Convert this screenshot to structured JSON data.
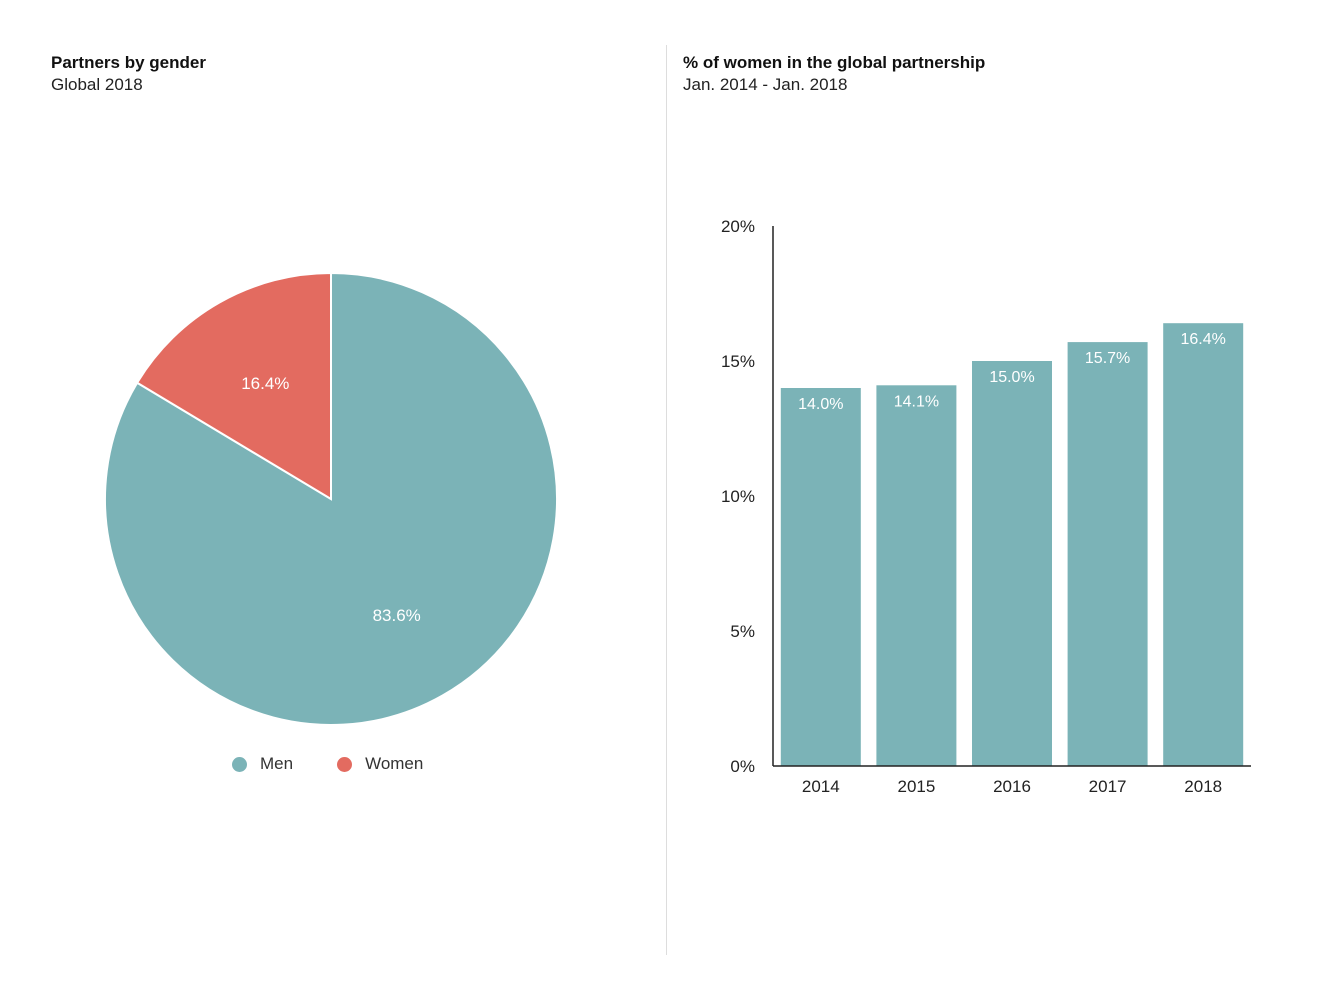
{
  "colors": {
    "men": "#7bb3b7",
    "women": "#e36b60"
  },
  "chart_data": [
    {
      "type": "pie",
      "title": "Partners by gender",
      "subtitle": "Global 2018",
      "slices": [
        {
          "label": "Men",
          "value": 83.6,
          "value_label": "83.6%"
        },
        {
          "label": "Women",
          "value": 16.4,
          "value_label": "16.4%"
        }
      ],
      "legend": [
        "Men",
        "Women"
      ],
      "legend_placement": "bottom"
    },
    {
      "type": "bar",
      "title": "% of women in the global partnership",
      "subtitle": "Jan. 2014 - Jan. 2018",
      "categories": [
        "2014",
        "2015",
        "2016",
        "2017",
        "2018"
      ],
      "values": [
        14.0,
        14.1,
        15.0,
        15.7,
        16.4
      ],
      "value_labels": [
        "14.0%",
        "14.1%",
        "15.0%",
        "15.7%",
        "16.4%"
      ],
      "ylim": [
        0,
        20
      ],
      "yticks": [
        0,
        5,
        10,
        15,
        20
      ],
      "ytick_labels": [
        "0%",
        "5%",
        "10%",
        "15%",
        "20%"
      ],
      "grid": false
    }
  ]
}
